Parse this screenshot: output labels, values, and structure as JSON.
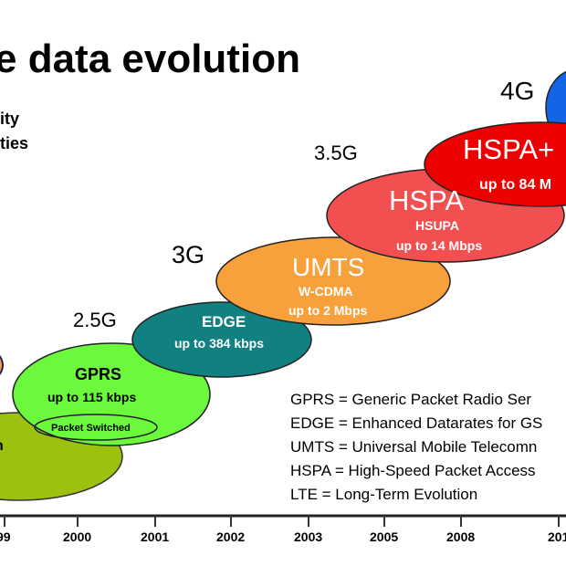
{
  "title": "e data evolution",
  "side_lines": [
    "ity",
    "ties"
  ],
  "generations": {
    "g25": "2.5G",
    "g3": "3G",
    "g35": "3.5G",
    "g4": "4G"
  },
  "bubbles": {
    "olive": {
      "label": "n",
      "color": "#9cc20f"
    },
    "gprs": {
      "name": "GPRS",
      "speed": "up to 115 kbps",
      "note": "Packet Switched",
      "color": "#6cf83c"
    },
    "edge": {
      "name": "EDGE",
      "speed": "up to 384 kbps",
      "color": "#108080"
    },
    "umts": {
      "name": "UMTS",
      "sub": "W-CDMA",
      "speed": "up to 2 Mbps",
      "color": "#f7a03c"
    },
    "hspa": {
      "name": "HSPA",
      "sub": "HSUPA",
      "speed": "up to 14 Mbps",
      "color": "#f25050"
    },
    "hspaplus": {
      "name": "HSPA+",
      "speed": "up to 84 M",
      "color": "#ee0000"
    },
    "lte": {
      "color": "#1464e6"
    }
  },
  "legend": [
    "GPRS  = Generic Packet Radio Ser",
    "EDGE = Enhanced Datarates for GS",
    "UMTS = Universal Mobile Telecomn",
    "HSPA = High-Speed Packet Access",
    "LTE = Long-Term Evolution"
  ],
  "timeline": [
    "99",
    "2000",
    "2001",
    "2002",
    "2003",
    "2005",
    "2008",
    "201"
  ]
}
